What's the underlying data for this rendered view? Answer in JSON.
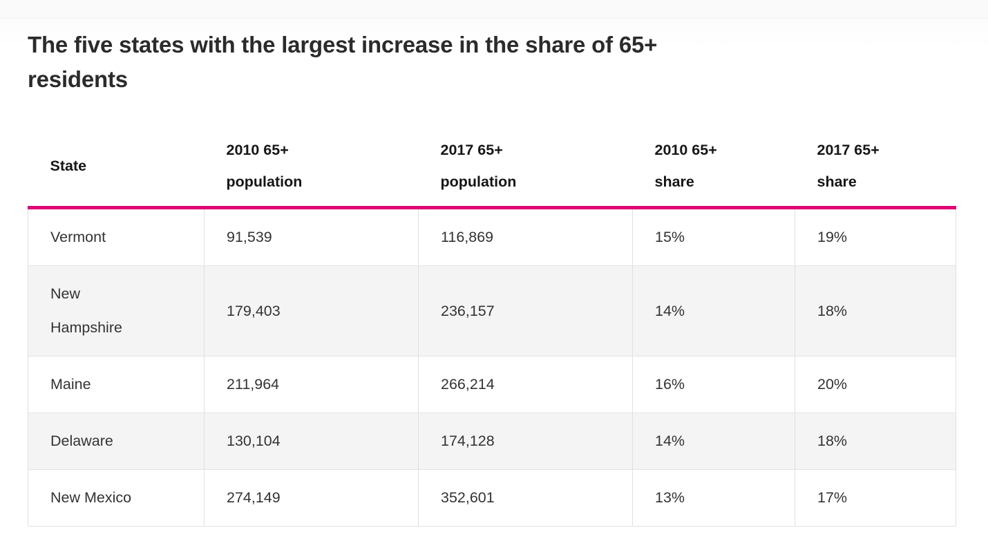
{
  "page": {
    "title_lines": [
      "The five states with the largest increase in the share of 65+",
      "residents"
    ]
  },
  "colors": {
    "accent": "#e00572",
    "alt_row_background": "#f4f4f4",
    "border": "#e0e0e0",
    "title_text": "#2b2b2b",
    "body_text": "#333333"
  },
  "table": {
    "columns": [
      "State",
      "2010 65+\npopulation",
      "2017 65+\npopulation",
      "2010 65+\nshare",
      "2017 65+\nshare"
    ],
    "rows": [
      [
        "Vermont",
        "91,539",
        "116,869",
        "15%",
        "19%"
      ],
      [
        "New\nHampshire",
        "179,403",
        "236,157",
        "14%",
        "18%"
      ],
      [
        "Maine",
        "211,964",
        "266,214",
        "16%",
        "20%"
      ],
      [
        "Delaware",
        "130,104",
        "174,128",
        "14%",
        "18%"
      ],
      [
        "New Mexico",
        "274,149",
        "352,601",
        "13%",
        "17%"
      ]
    ]
  },
  "chart_data": {
    "type": "table",
    "title": "The five states with the largest increase in the share of 65+ residents",
    "columns": [
      "State",
      "2010 65+ population",
      "2017 65+ population",
      "2010 65+ share",
      "2017 65+ share"
    ],
    "rows": [
      [
        "Vermont",
        91539,
        116869,
        "15%",
        "19%"
      ],
      [
        "New Hampshire",
        179403,
        236157,
        "14%",
        "18%"
      ],
      [
        "Maine",
        211964,
        266214,
        "16%",
        "20%"
      ],
      [
        "Delaware",
        130104,
        174128,
        "14%",
        "18%"
      ],
      [
        "New Mexico",
        274149,
        352601,
        "13%",
        "17%"
      ]
    ]
  }
}
